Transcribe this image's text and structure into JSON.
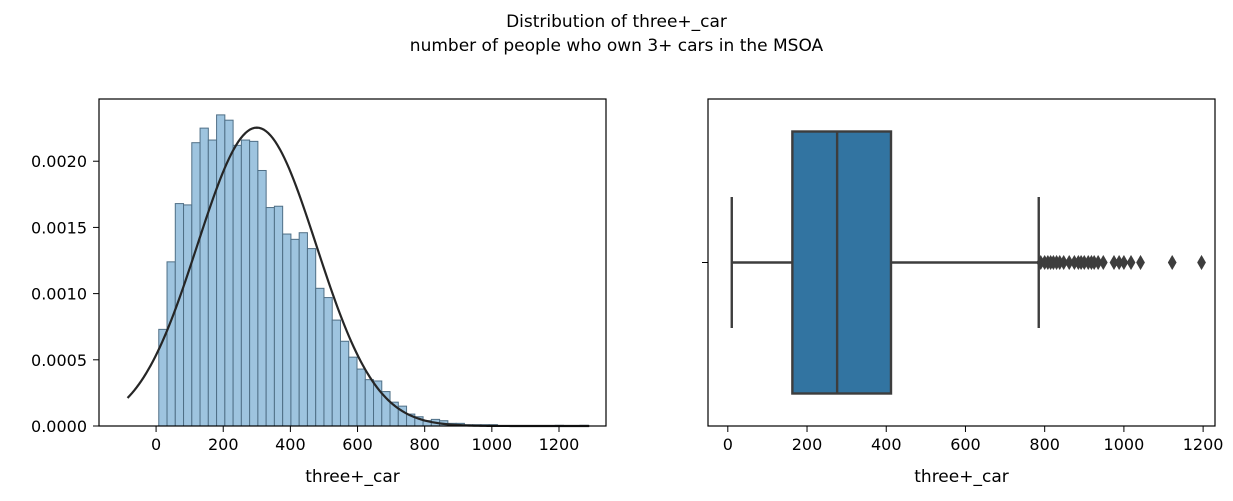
{
  "figure": {
    "title_line1": "Distribution of three+_car",
    "title_line2": "number of people who own 3+ cars in the MSOA"
  },
  "chart_data": [
    {
      "type": "histogram",
      "xlabel": "three+_car",
      "ylabel": "",
      "xlim": [
        -170,
        1340
      ],
      "ylim": [
        0,
        0.00247
      ],
      "xticks": [
        0,
        200,
        400,
        600,
        800,
        1000,
        1200
      ],
      "yticks": [
        0.0,
        0.0005,
        0.001,
        0.0015,
        0.002
      ],
      "ytick_labels": [
        "0.0000",
        "0.0005",
        "0.0010",
        "0.0015",
        "0.0020"
      ],
      "bar_color": "#9ec4df",
      "bar_edge_color": "#4f6f86",
      "bin_width": 24.6,
      "bin_start": 8,
      "bar_heights": [
        0.00073,
        0.00124,
        0.00168,
        0.00167,
        0.00214,
        0.00225,
        0.00216,
        0.00235,
        0.00231,
        0.00212,
        0.00216,
        0.00215,
        0.00193,
        0.00165,
        0.00166,
        0.00145,
        0.00141,
        0.00146,
        0.00134,
        0.00104,
        0.00097,
        0.0008,
        0.00064,
        0.00052,
        0.00043,
        0.00035,
        0.00034,
        0.00026,
        0.00018,
        0.00015,
        9e-05,
        7e-05,
        4e-05,
        5e-05,
        4e-05,
        2e-05,
        2e-05,
        1e-05,
        1e-05,
        1e-05,
        1e-05,
        0.0,
        0.0,
        0.0,
        0.0,
        0.0,
        0.0,
        0.0,
        5e-06,
        0.0,
        0.0,
        5e-06
      ],
      "fit_curve": {
        "type": "normal",
        "mean": 300,
        "std": 177,
        "x_range": [
          -85,
          1290
        ],
        "color": "#262626"
      }
    },
    {
      "type": "boxplot",
      "xlabel": "three+_car",
      "xlim": [
        -50,
        1230
      ],
      "xticks": [
        0,
        200,
        400,
        600,
        800,
        1000,
        1200
      ],
      "box_color": "#3274a1",
      "line_color": "#3d3d3d",
      "whisker_low": 10,
      "q1": 163,
      "median": 276,
      "q3": 412,
      "whisker_high": 785,
      "outliers": [
        790,
        800,
        808,
        815,
        822,
        830,
        838,
        848,
        862,
        875,
        885,
        892,
        900,
        910,
        918,
        925,
        935,
        948,
        975,
        988,
        1000,
        1018,
        1042,
        1122,
        1196
      ]
    }
  ]
}
